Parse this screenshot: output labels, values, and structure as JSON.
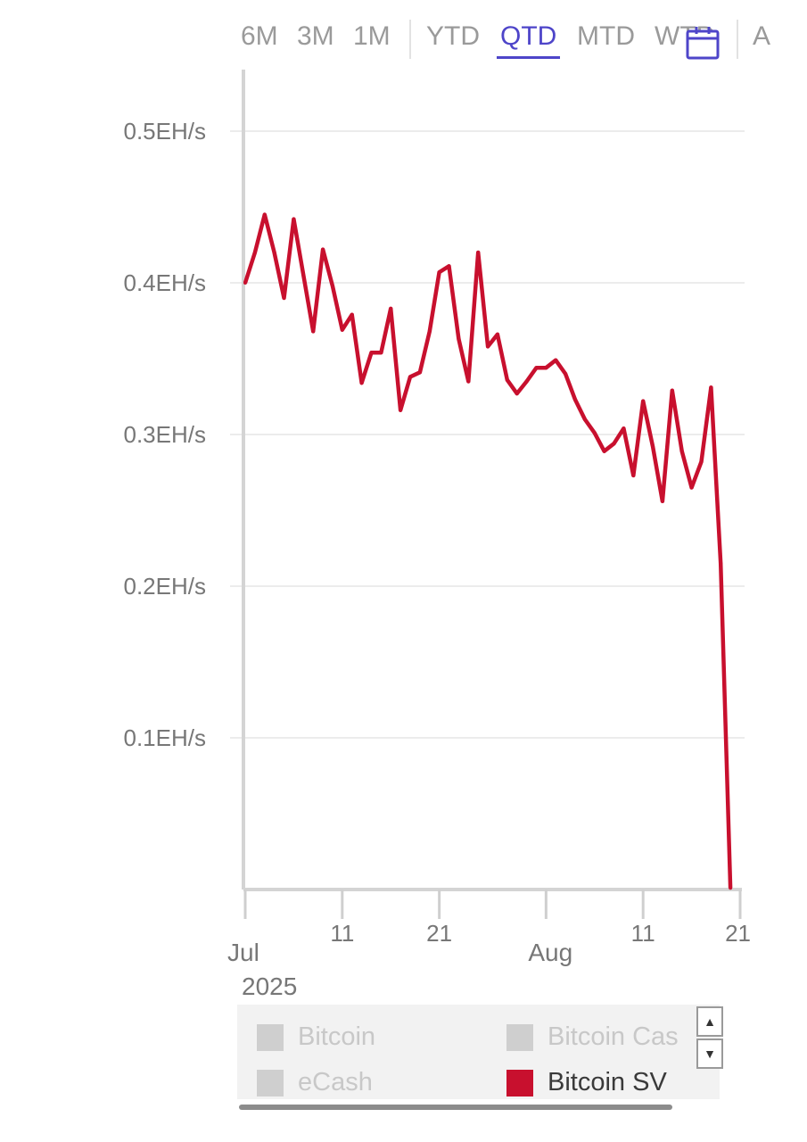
{
  "range_selector": {
    "buttons": [
      "6M",
      "3M",
      "1M",
      "YTD",
      "QTD",
      "MTD",
      "WTD",
      "A"
    ],
    "active": "QTD"
  },
  "colors": {
    "accent": "#4e45c9",
    "series": "#c8102e",
    "legend_inactive": "#cfcfcf"
  },
  "icons": {
    "calendar": "calendar-icon"
  },
  "chart_data": {
    "type": "line",
    "y_unit": "EH/s",
    "ylim": [
      0,
      0.5
    ],
    "y_ticks": [
      "0.1EH/s",
      "0.2EH/s",
      "0.3EH/s",
      "0.4EH/s",
      "0.5EH/s"
    ],
    "x_ticks": [
      {
        "label": "Jul",
        "sub": "2025",
        "date": "2025-07-01"
      },
      {
        "label": "11",
        "date": "2025-07-11"
      },
      {
        "label": "21",
        "date": "2025-07-21"
      },
      {
        "label": "Aug",
        "date": "2025-08-01"
      },
      {
        "label": "11",
        "date": "2025-08-11"
      },
      {
        "label": "21",
        "date": "2025-08-21"
      }
    ],
    "grid": true,
    "series": [
      {
        "name": "Bitcoin SV",
        "x": [
          "2025-07-01",
          "2025-07-02",
          "2025-07-03",
          "2025-07-04",
          "2025-07-05",
          "2025-07-06",
          "2025-07-07",
          "2025-07-08",
          "2025-07-09",
          "2025-07-10",
          "2025-07-11",
          "2025-07-12",
          "2025-07-13",
          "2025-07-14",
          "2025-07-15",
          "2025-07-16",
          "2025-07-17",
          "2025-07-18",
          "2025-07-19",
          "2025-07-20",
          "2025-07-21",
          "2025-07-22",
          "2025-07-23",
          "2025-07-24",
          "2025-07-25",
          "2025-07-26",
          "2025-07-27",
          "2025-07-28",
          "2025-07-29",
          "2025-07-30",
          "2025-07-31",
          "2025-08-01",
          "2025-08-02",
          "2025-08-03",
          "2025-08-04",
          "2025-08-05",
          "2025-08-06",
          "2025-08-07",
          "2025-08-08",
          "2025-08-09",
          "2025-08-10",
          "2025-08-11",
          "2025-08-12",
          "2025-08-13",
          "2025-08-14",
          "2025-08-15",
          "2025-08-16",
          "2025-08-17",
          "2025-08-18",
          "2025-08-19",
          "2025-08-20"
        ],
        "values": [
          0.4,
          0.42,
          0.445,
          0.42,
          0.39,
          0.442,
          0.405,
          0.368,
          0.422,
          0.398,
          0.369,
          0.379,
          0.334,
          0.354,
          0.354,
          0.383,
          0.316,
          0.338,
          0.341,
          0.368,
          0.407,
          0.411,
          0.363,
          0.335,
          0.42,
          0.358,
          0.366,
          0.336,
          0.327,
          0.335,
          0.344,
          0.344,
          0.349,
          0.34,
          0.323,
          0.31,
          0.301,
          0.289,
          0.294,
          0.304,
          0.273,
          0.322,
          0.292,
          0.256,
          0.329,
          0.289,
          0.265,
          0.282,
          0.331,
          0.215,
          0.001
        ]
      }
    ],
    "legend": {
      "placement": "bottom",
      "items": [
        {
          "label": "Bitcoin",
          "active": false
        },
        {
          "label": "Bitcoin Cas",
          "active": false
        },
        {
          "label": "eCash",
          "active": false
        },
        {
          "label": "Bitcoin SV",
          "active": true
        }
      ]
    }
  }
}
